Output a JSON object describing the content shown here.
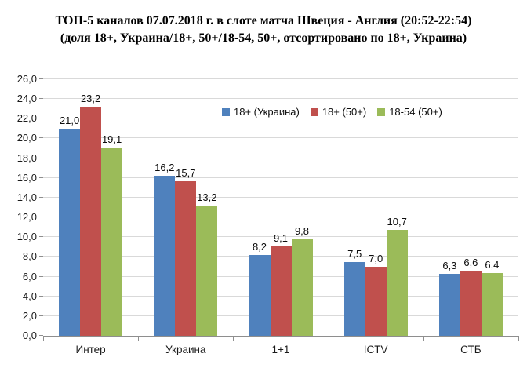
{
  "window": {
    "background": "#ffffff"
  },
  "title": {
    "line1": "ТОП-5 каналов 07.07.2018 г. в слоте матча Швеция - Англия (20:52-22:54)",
    "line2": "(доля 18+, Украина/18+, 50+/18-54, 50+, отсортировано по 18+, Украина)"
  },
  "chart_data": {
    "type": "bar",
    "categories": [
      "Интер",
      "Украина",
      "1+1",
      "ICTV",
      "СТБ"
    ],
    "series": [
      {
        "name": "18+ (Украина)",
        "color": "#4F81BD",
        "values": [
          21.0,
          16.2,
          8.2,
          7.5,
          6.3
        ],
        "value_labels": [
          "21,0",
          "16,2",
          "8,2",
          "7,5",
          "6,3"
        ]
      },
      {
        "name": "18+ (50+)",
        "color": "#C0504D",
        "values": [
          23.2,
          15.7,
          9.1,
          7.0,
          6.6
        ],
        "value_labels": [
          "23,2",
          "15,7",
          "9,1",
          "7,0",
          "6,6"
        ]
      },
      {
        "name": "18-54 (50+)",
        "color": "#9BBB59",
        "values": [
          19.1,
          13.2,
          9.8,
          10.7,
          6.4
        ],
        "value_labels": [
          "19,1",
          "13,2",
          "9,8",
          "10,7",
          "6,4"
        ]
      }
    ],
    "y_axis": {
      "min": 0,
      "max": 26,
      "step": 2,
      "tick_labels": [
        "0,0",
        "2,0",
        "4,0",
        "6,0",
        "8,0",
        "10,0",
        "12,0",
        "14,0",
        "16,0",
        "18,0",
        "20,0",
        "22,0",
        "24,0",
        "26,0"
      ]
    },
    "xlabel": "",
    "ylabel": "",
    "grid": true,
    "legend_position": "inside-top",
    "data_labels": "outside-end"
  },
  "colors": {
    "gridline": "#D9D9D9",
    "axis": "#8E8E8E",
    "title_text": "#000000",
    "label_text": "#0D0D0D"
  }
}
